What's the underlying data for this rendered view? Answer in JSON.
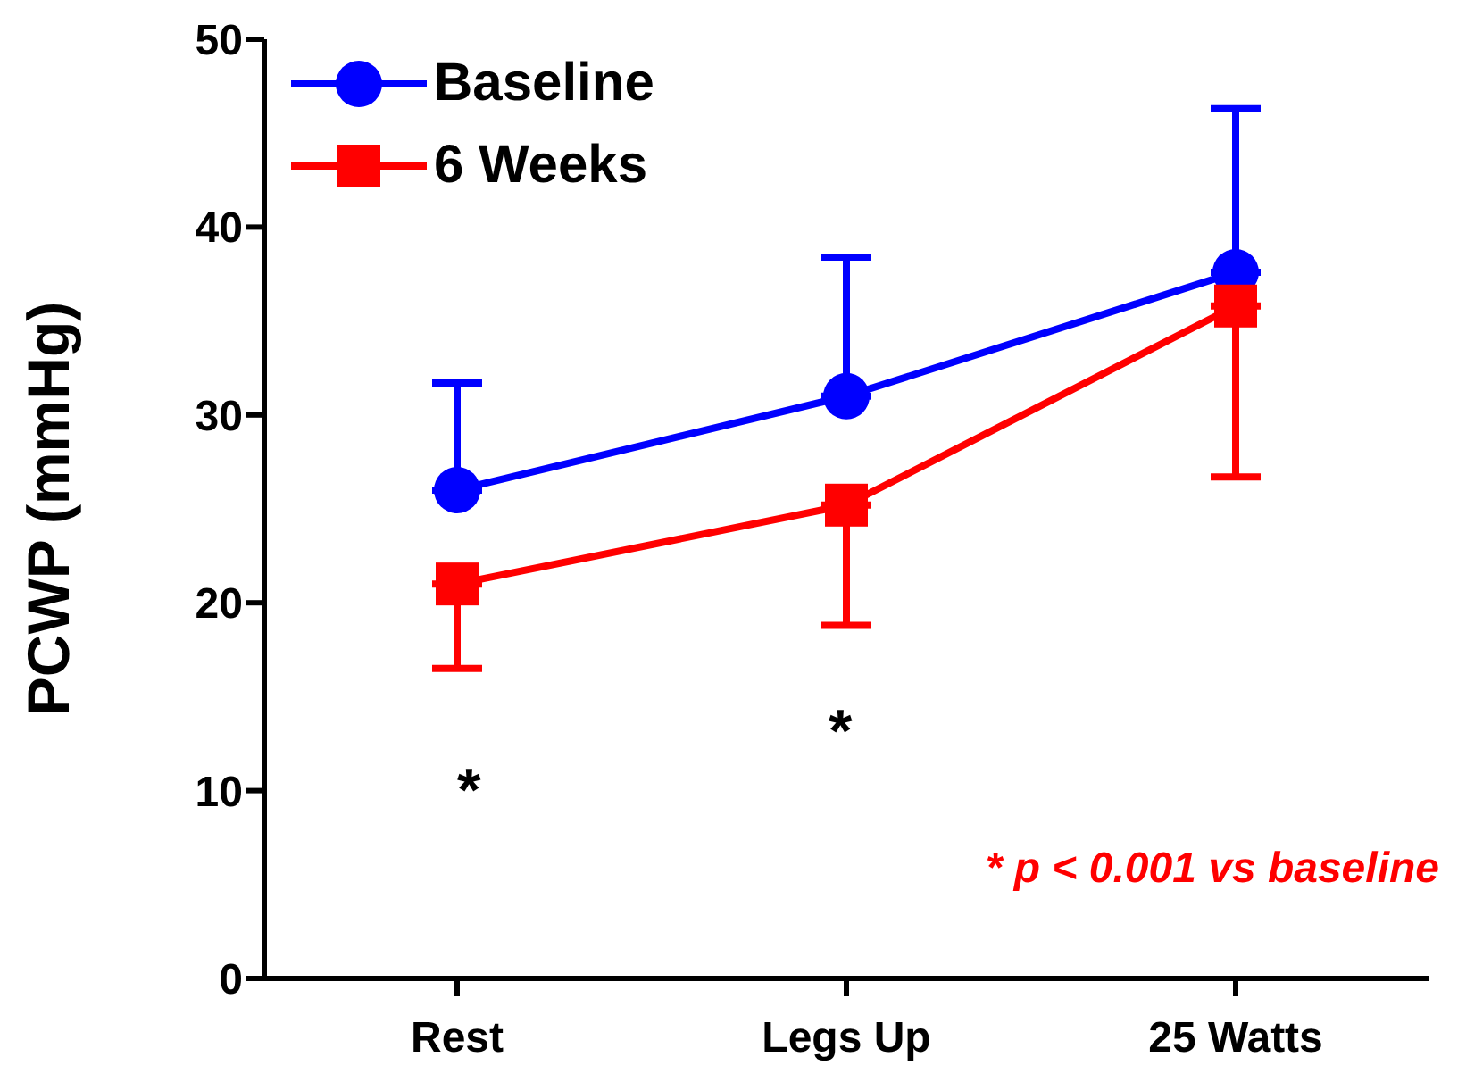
{
  "chart_data": {
    "type": "line",
    "ylabel": "PCWP (mmHg)",
    "categories": [
      "Rest",
      "Legs Up",
      "25 Watts"
    ],
    "series": [
      {
        "name": "Baseline",
        "color": "#0000ff",
        "marker": "circle",
        "values": [
          26.0,
          31.0,
          37.6
        ],
        "errors": [
          [
            26.0,
            31.7
          ],
          [
            31.0,
            38.4
          ],
          [
            37.6,
            46.3
          ]
        ]
      },
      {
        "name": "6 Weeks",
        "color": "#ff0000",
        "marker": "square",
        "values": [
          21.0,
          25.2,
          35.8
        ],
        "errors": [
          [
            16.5,
            21.0
          ],
          [
            18.8,
            25.2
          ],
          [
            26.7,
            35.8
          ]
        ]
      }
    ],
    "ylim": [
      0,
      50
    ],
    "yticks": [
      0,
      10,
      20,
      30,
      40,
      50
    ],
    "grid": false,
    "legend": "top left",
    "annotations": [
      "*",
      "*",
      "* p < 0.001 vs baseline"
    ]
  }
}
